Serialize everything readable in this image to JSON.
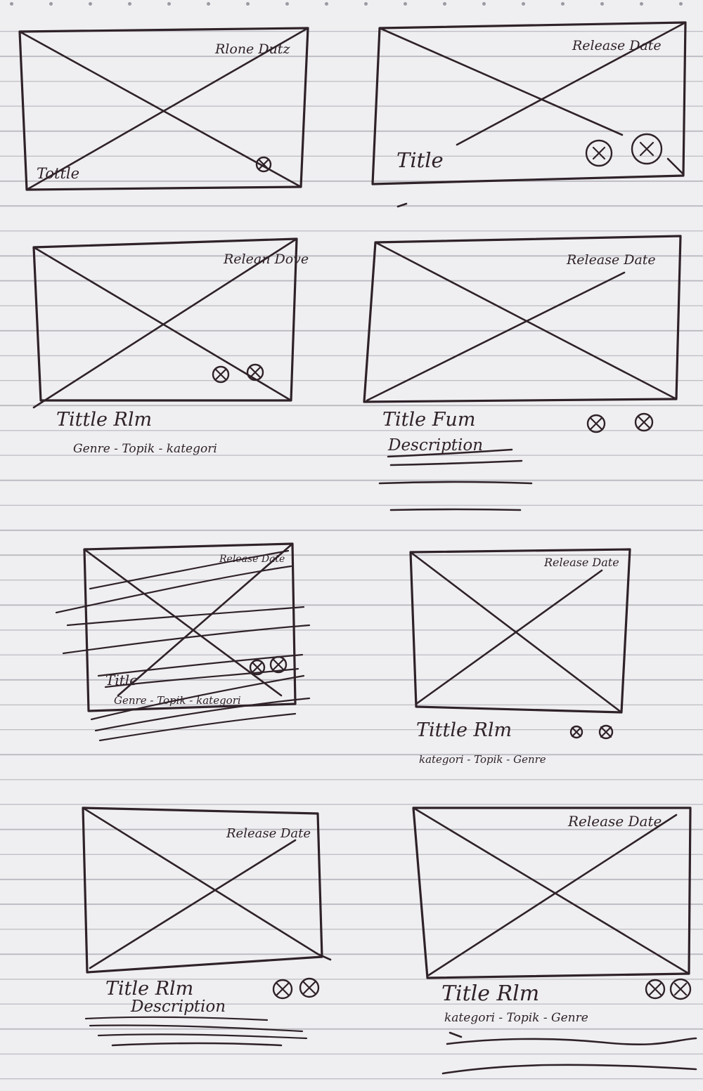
{
  "sheet": {
    "wireframes": [
      {
        "id": "w1",
        "date": "Rlone Dutz",
        "title": "Tottle",
        "meta": "",
        "desc": "",
        "icons": 1
      },
      {
        "id": "w2",
        "date": "Release Date",
        "title": "Title",
        "meta": "",
        "desc": "",
        "icons": 2
      },
      {
        "id": "w3",
        "date": "Relean Dove",
        "title": "Tittle Rlm",
        "meta": "Genre - Topik - kategori",
        "desc": "",
        "icons": 2
      },
      {
        "id": "w4",
        "date": "Release Date",
        "title": "Title Fum",
        "meta": "",
        "desc": "Description",
        "icons": 2
      },
      {
        "id": "w5",
        "date": "Release Date",
        "title": "Title",
        "meta": "Genre - Topik - kategori",
        "desc": "",
        "icons": 2
      },
      {
        "id": "w6",
        "date": "Release Date",
        "title": "Tittle Rlm",
        "meta": "kategori - Topik - Genre",
        "desc": "",
        "icons": 2
      },
      {
        "id": "w7",
        "date": "Release Date",
        "title": "Title Rlm",
        "meta": "kategori - Topik - Genre",
        "desc": "Description",
        "icons": 2
      },
      {
        "id": "w8",
        "date": "Release Date",
        "title": "Title Rlm",
        "meta": "kategori - Topik - Genre",
        "desc": "",
        "icons": 2
      }
    ]
  },
  "colors": {
    "ink": "#2f2228",
    "paper": "#efeff1",
    "rule": "#b9b9c0"
  },
  "icons": {
    "favorite": "circled-x-icon",
    "action": "circled-x-icon"
  }
}
